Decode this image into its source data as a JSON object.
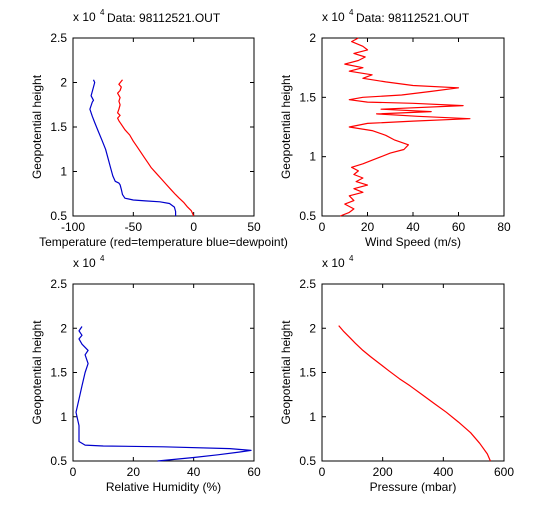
{
  "colors": {
    "red": "#ff0000",
    "blue": "#0000cc",
    "axis": "#000000",
    "background": "#ffffff"
  },
  "chart_data": [
    {
      "type": "line",
      "title": "Data: 98112521.OUT",
      "xlabel": "Temperature (red=temperature blue=dewpoint)",
      "ylabel": "Geopotential height",
      "y_exponent_label": "x 10",
      "y_exponent": "4",
      "xlim": [
        -100,
        50
      ],
      "ylim": [
        0.5,
        2.5
      ],
      "xticks": [
        "-100",
        "-50",
        "0",
        "50"
      ],
      "yticks": [
        "0.5",
        "1",
        "1.5",
        "2",
        "2.5"
      ],
      "xtick_values": [
        -100,
        -50,
        0,
        50
      ],
      "ytick_values": [
        0.5,
        1,
        1.5,
        2,
        2.5
      ],
      "grid": false,
      "series": [
        {
          "color": "#ff0000",
          "points": [
            [
              0,
              0.5
            ],
            [
              -2,
              0.56
            ],
            [
              -5,
              0.6
            ],
            [
              -8,
              0.65
            ],
            [
              -12,
              0.7
            ],
            [
              -15,
              0.74
            ],
            [
              -19,
              0.8
            ],
            [
              -23,
              0.86
            ],
            [
              -27,
              0.92
            ],
            [
              -31,
              0.98
            ],
            [
              -35,
              1.04
            ],
            [
              -38,
              1.1
            ],
            [
              -41,
              1.16
            ],
            [
              -44,
              1.22
            ],
            [
              -47,
              1.28
            ],
            [
              -50,
              1.34
            ],
            [
              -53,
              1.41
            ],
            [
              -57,
              1.47
            ],
            [
              -60,
              1.53
            ],
            [
              -62,
              1.57
            ],
            [
              -63,
              1.6
            ],
            [
              -61,
              1.63
            ],
            [
              -63,
              1.66
            ],
            [
              -62,
              1.7
            ],
            [
              -61,
              1.75
            ],
            [
              -62,
              1.79
            ],
            [
              -61,
              1.83
            ],
            [
              -63,
              1.88
            ],
            [
              -61,
              1.91
            ],
            [
              -60,
              1.95
            ],
            [
              -62,
              1.98
            ],
            [
              -59,
              2.03
            ]
          ]
        },
        {
          "color": "#0000cc",
          "points": [
            [
              -15,
              0.5
            ],
            [
              -15,
              0.55
            ],
            [
              -16,
              0.6
            ],
            [
              -20,
              0.64
            ],
            [
              -28,
              0.66
            ],
            [
              -40,
              0.67
            ],
            [
              -50,
              0.68
            ],
            [
              -57,
              0.7
            ],
            [
              -59,
              0.74
            ],
            [
              -60,
              0.8
            ],
            [
              -61,
              0.85
            ],
            [
              -62,
              0.87
            ],
            [
              -65,
              0.89
            ],
            [
              -67,
              0.95
            ],
            [
              -69,
              1.05
            ],
            [
              -71,
              1.15
            ],
            [
              -73,
              1.25
            ],
            [
              -76,
              1.35
            ],
            [
              -79,
              1.45
            ],
            [
              -82,
              1.55
            ],
            [
              -84,
              1.62
            ],
            [
              -86,
              1.7
            ],
            [
              -84,
              1.78
            ],
            [
              -83,
              1.8
            ],
            [
              -85,
              1.85
            ],
            [
              -84,
              1.9
            ],
            [
              -83,
              1.95
            ],
            [
              -82,
              2.0
            ],
            [
              -83,
              2.03
            ]
          ]
        }
      ]
    },
    {
      "type": "line",
      "title": "Data: 98112521.OUT",
      "xlabel": "Wind Speed (m/s)",
      "ylabel": "Geopotential height",
      "y_exponent_label": "x 10",
      "y_exponent": "4",
      "xlim": [
        0,
        80
      ],
      "ylim": [
        0.5,
        2
      ],
      "xticks": [
        "0",
        "20",
        "40",
        "60",
        "80"
      ],
      "yticks": [
        "0.5",
        "1",
        "1.5",
        "2"
      ],
      "xtick_values": [
        0,
        20,
        40,
        60,
        80
      ],
      "ytick_values": [
        0.5,
        1,
        1.5,
        2
      ],
      "grid": false,
      "series": [
        {
          "color": "#ff0000",
          "points": [
            [
              8,
              0.5
            ],
            [
              12,
              0.53
            ],
            [
              14,
              0.56
            ],
            [
              10,
              0.6
            ],
            [
              14,
              0.63
            ],
            [
              12,
              0.67
            ],
            [
              18,
              0.7
            ],
            [
              14,
              0.73
            ],
            [
              20,
              0.76
            ],
            [
              15,
              0.79
            ],
            [
              18,
              0.82
            ],
            [
              14,
              0.85
            ],
            [
              16,
              0.88
            ],
            [
              13,
              0.91
            ],
            [
              18,
              0.94
            ],
            [
              22,
              0.97
            ],
            [
              26,
              1.0
            ],
            [
              30,
              1.03
            ],
            [
              36,
              1.06
            ],
            [
              38,
              1.1
            ],
            [
              32,
              1.14
            ],
            [
              28,
              1.18
            ],
            [
              22,
              1.22
            ],
            [
              12,
              1.25
            ],
            [
              20,
              1.28
            ],
            [
              40,
              1.3
            ],
            [
              65,
              1.32
            ],
            [
              42,
              1.34
            ],
            [
              24,
              1.36
            ],
            [
              48,
              1.38
            ],
            [
              26,
              1.4
            ],
            [
              62,
              1.43
            ],
            [
              40,
              1.45
            ],
            [
              20,
              1.46
            ],
            [
              12,
              1.48
            ],
            [
              18,
              1.5
            ],
            [
              35,
              1.52
            ],
            [
              48,
              1.55
            ],
            [
              60,
              1.58
            ],
            [
              40,
              1.6
            ],
            [
              28,
              1.63
            ],
            [
              18,
              1.66
            ],
            [
              22,
              1.69
            ],
            [
              12,
              1.72
            ],
            [
              18,
              1.75
            ],
            [
              10,
              1.78
            ],
            [
              16,
              1.81
            ],
            [
              19,
              1.84
            ],
            [
              14,
              1.87
            ],
            [
              20,
              1.9
            ],
            [
              18,
              1.93
            ],
            [
              13,
              1.97
            ],
            [
              16,
              2.0
            ]
          ]
        }
      ]
    },
    {
      "type": "line",
      "title": "",
      "xlabel": "Relative Humidity (%)",
      "ylabel": "Geopotential height",
      "y_exponent_label": "x 10",
      "y_exponent": "4",
      "xlim": [
        0,
        60
      ],
      "ylim": [
        0.5,
        2.5
      ],
      "xticks": [
        "0",
        "20",
        "40",
        "60"
      ],
      "yticks": [
        "0.5",
        "1",
        "1.5",
        "2",
        "2.5"
      ],
      "xtick_values": [
        0,
        20,
        40,
        60
      ],
      "ytick_values": [
        0.5,
        1,
        1.5,
        2,
        2.5
      ],
      "grid": false,
      "series": [
        {
          "color": "#0000cc",
          "points": [
            [
              28,
              0.5
            ],
            [
              40,
              0.54
            ],
            [
              48,
              0.57
            ],
            [
              55,
              0.6
            ],
            [
              59,
              0.62
            ],
            [
              52,
              0.64
            ],
            [
              30,
              0.66
            ],
            [
              10,
              0.67
            ],
            [
              4,
              0.68
            ],
            [
              2,
              0.72
            ],
            [
              2,
              0.9
            ],
            [
              1,
              1.05
            ],
            [
              2,
              1.2
            ],
            [
              3,
              1.35
            ],
            [
              4,
              1.5
            ],
            [
              5,
              1.6
            ],
            [
              4,
              1.7
            ],
            [
              5,
              1.75
            ],
            [
              3,
              1.82
            ],
            [
              2,
              1.88
            ],
            [
              3,
              1.92
            ],
            [
              2,
              1.97
            ],
            [
              3,
              2.02
            ]
          ]
        }
      ]
    },
    {
      "type": "line",
      "title": "",
      "xlabel": "Pressure (mbar)",
      "ylabel": "Geopotential height",
      "y_exponent_label": "x 10",
      "y_exponent": "4",
      "xlim": [
        0,
        600
      ],
      "ylim": [
        0.5,
        2.5
      ],
      "xticks": [
        "0",
        "200",
        "400",
        "600"
      ],
      "yticks": [
        "0.5",
        "1",
        "1.5",
        "2",
        "2.5"
      ],
      "xtick_values": [
        0,
        200,
        400,
        600
      ],
      "ytick_values": [
        0.5,
        1,
        1.5,
        2,
        2.5
      ],
      "grid": false,
      "series": [
        {
          "color": "#ff0000",
          "points": [
            [
              55,
              2.03
            ],
            [
              70,
              1.97
            ],
            [
              90,
              1.9
            ],
            [
              110,
              1.83
            ],
            [
              135,
              1.75
            ],
            [
              160,
              1.68
            ],
            [
              190,
              1.6
            ],
            [
              220,
              1.52
            ],
            [
              255,
              1.43
            ],
            [
              290,
              1.35
            ],
            [
              330,
              1.25
            ],
            [
              370,
              1.15
            ],
            [
              410,
              1.05
            ],
            [
              450,
              0.94
            ],
            [
              490,
              0.82
            ],
            [
              520,
              0.7
            ],
            [
              545,
              0.58
            ],
            [
              555,
              0.5
            ]
          ]
        }
      ]
    }
  ]
}
